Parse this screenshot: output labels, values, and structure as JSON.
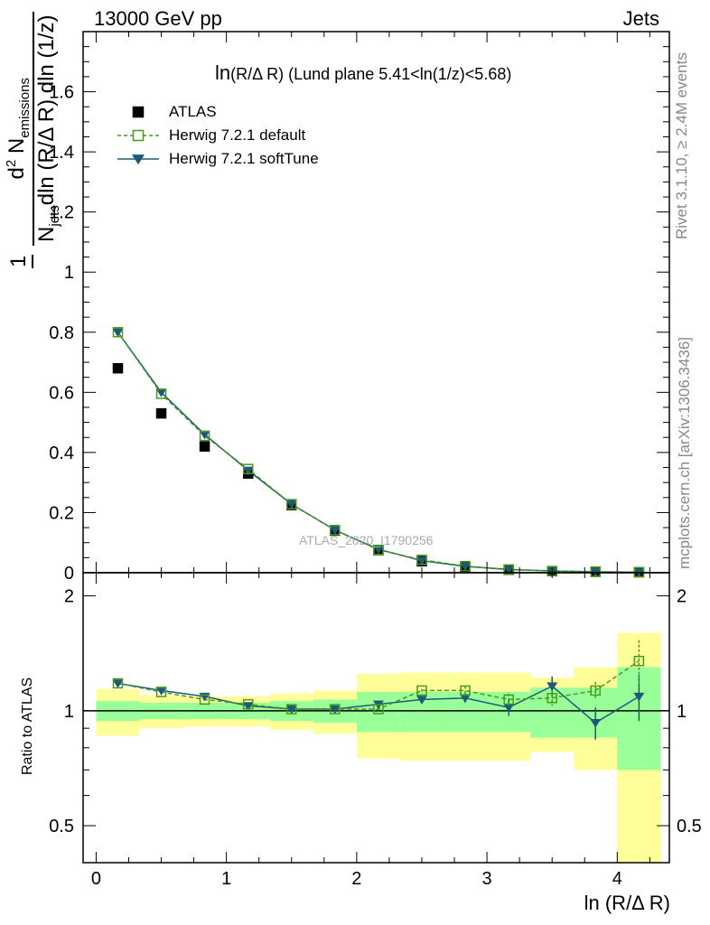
{
  "header": {
    "energy": "13000 GeV pp",
    "category": "Jets"
  },
  "side_text": {
    "rivet": "Rivet 3.1.10, ≥ 2.4M events",
    "mcplots": "mcplots.cern.ch [arXiv:1306.3436]"
  },
  "chart_data": {
    "type": "scatter",
    "title": "ln(R/Δ R) (Lund plane 5.41<ln(1/z)<5.68)",
    "title_parts": {
      "lhs": "ln",
      "arg": "(R/Δ R)",
      "rest": " (Lund plane 5.41<ln(1/z)<5.68)"
    },
    "watermark": "ATLAS_2020_I1790256",
    "xlabel": "ln (R/Δ R)",
    "ylabel": {
      "one": "1",
      "d2": "d",
      "sup2": "2",
      "N": " N",
      "sub_em": "emissions",
      "den_N": "N",
      "sub_jets": "jets",
      "den_rest": "dln (R/Δ R) dln (1/z)"
    },
    "ratio_ylabel": "Ratio to ATLAS",
    "xlim": [
      -0.1,
      4.4
    ],
    "ylim": [
      0,
      1.8
    ],
    "ratio_ylim": [
      0.4,
      2.3
    ],
    "x_ticks": [
      "0",
      "1",
      "2",
      "3",
      "4"
    ],
    "y_ticks": [
      "0",
      "0.2",
      "0.4",
      "0.6",
      "0.8",
      "1",
      "1.2",
      "1.4",
      "1.6"
    ],
    "ratio_ticks": [
      "0.5",
      "1",
      "2"
    ],
    "legend": {
      "atlas": "ATLAS",
      "default": "Herwig 7.2.1 default",
      "soft": "Herwig 7.2.1 softTune"
    },
    "bin_edges": [
      0.0,
      0.333,
      0.667,
      1.0,
      1.333,
      1.667,
      2.0,
      2.333,
      2.667,
      3.0,
      3.333,
      3.667,
      4.0,
      4.333
    ],
    "x": [
      0.167,
      0.5,
      0.833,
      1.167,
      1.5,
      1.833,
      2.167,
      2.5,
      2.833,
      3.167,
      3.5,
      3.833,
      4.167
    ],
    "series": [
      {
        "name": "ATLAS",
        "values": [
          0.68,
          0.53,
          0.42,
          0.33,
          0.225,
          0.14,
          0.075,
          0.038,
          0.02,
          0.01,
          0.005,
          0.003,
          0.0015
        ]
      },
      {
        "name": "Herwig 7.2.1 default",
        "values": [
          0.8,
          0.595,
          0.455,
          0.345,
          0.228,
          0.142,
          0.076,
          0.043,
          0.022,
          0.011,
          0.0055,
          0.0033,
          0.002
        ]
      },
      {
        "name": "Herwig 7.2.1 softTune",
        "values": [
          0.8,
          0.6,
          0.46,
          0.34,
          0.228,
          0.142,
          0.078,
          0.04,
          0.021,
          0.0105,
          0.006,
          0.0028,
          0.0017
        ]
      }
    ],
    "ratio": {
      "default": [
        1.18,
        1.12,
        1.07,
        1.04,
        1.01,
        1.01,
        1.01,
        1.13,
        1.13,
        1.07,
        1.08,
        1.13,
        1.35
      ],
      "default_err": [
        0.01,
        0.01,
        0.01,
        0.01,
        0.01,
        0.01,
        0.01,
        0.01,
        0.03,
        0.04,
        0.05,
        0.06,
        0.18
      ],
      "soft": [
        1.18,
        1.13,
        1.09,
        1.03,
        1.01,
        1.01,
        1.04,
        1.07,
        1.08,
        1.02,
        1.16,
        0.93,
        1.09
      ],
      "soft_err": [
        0.01,
        0.01,
        0.01,
        0.01,
        0.01,
        0.01,
        0.01,
        0.02,
        0.03,
        0.05,
        0.07,
        0.09,
        0.15
      ],
      "band_inner": [
        0.06,
        0.05,
        0.05,
        0.05,
        0.06,
        0.07,
        0.12,
        0.12,
        0.12,
        0.12,
        0.15,
        0.15,
        0.3
      ],
      "band_outer": [
        0.14,
        0.1,
        0.09,
        0.09,
        0.11,
        0.13,
        0.25,
        0.26,
        0.26,
        0.26,
        0.22,
        0.3,
        0.6
      ]
    },
    "colors": {
      "atlas": "#000000",
      "default": "#4a9a1a",
      "soft": "#1d5a78",
      "band_outer": "#ffff99",
      "band_inner": "#99ff99"
    }
  }
}
